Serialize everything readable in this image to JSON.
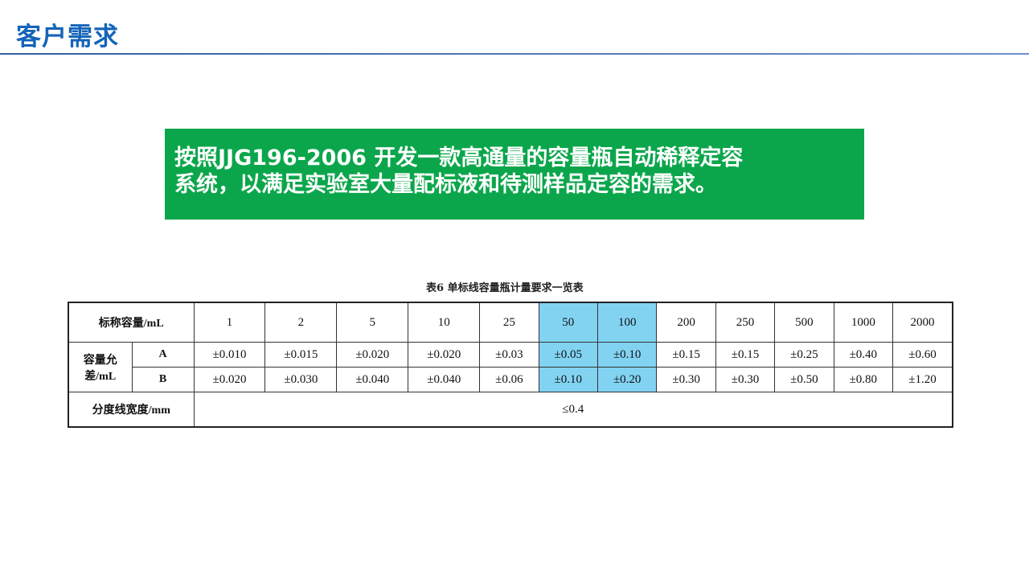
{
  "header": {
    "title": "客户需求"
  },
  "banner": {
    "line1": "按照JJG196-2006 开发一款高通量的容量瓶自动稀释定容",
    "line2": "系统，以满足实验室大量配标液和待测样品定容的需求。"
  },
  "table": {
    "caption": "表6  单标线容量瓶计量要求一览表",
    "nominal_label": "标称容量/mL",
    "tolerance_label_1": "容量允",
    "tolerance_label_2": "差/mL",
    "class_a": "A",
    "class_b": "B",
    "line_width_label": "分度线宽度/mm",
    "line_width_value": "≤0.4",
    "capacities": [
      "1",
      "2",
      "5",
      "10",
      "25",
      "50",
      "100",
      "200",
      "250",
      "500",
      "1000",
      "2000"
    ],
    "a_values": [
      "±0.010",
      "±0.015",
      "±0.020",
      "±0.020",
      "±0.03",
      "±0.05",
      "±0.10",
      "±0.15",
      "±0.15",
      "±0.25",
      "±0.40",
      "±0.60"
    ],
    "b_values": [
      "±0.020",
      "±0.030",
      "±0.040",
      "±0.040",
      "±0.06",
      "±0.10",
      "±0.20",
      "±0.30",
      "±0.30",
      "±0.50",
      "±0.80",
      "±1.20"
    ],
    "highlight_color": "#82d3f2",
    "highlighted_capacities": [
      "50",
      "100"
    ]
  },
  "colors": {
    "title": "#1464b8",
    "banner": "#0ba64b"
  }
}
